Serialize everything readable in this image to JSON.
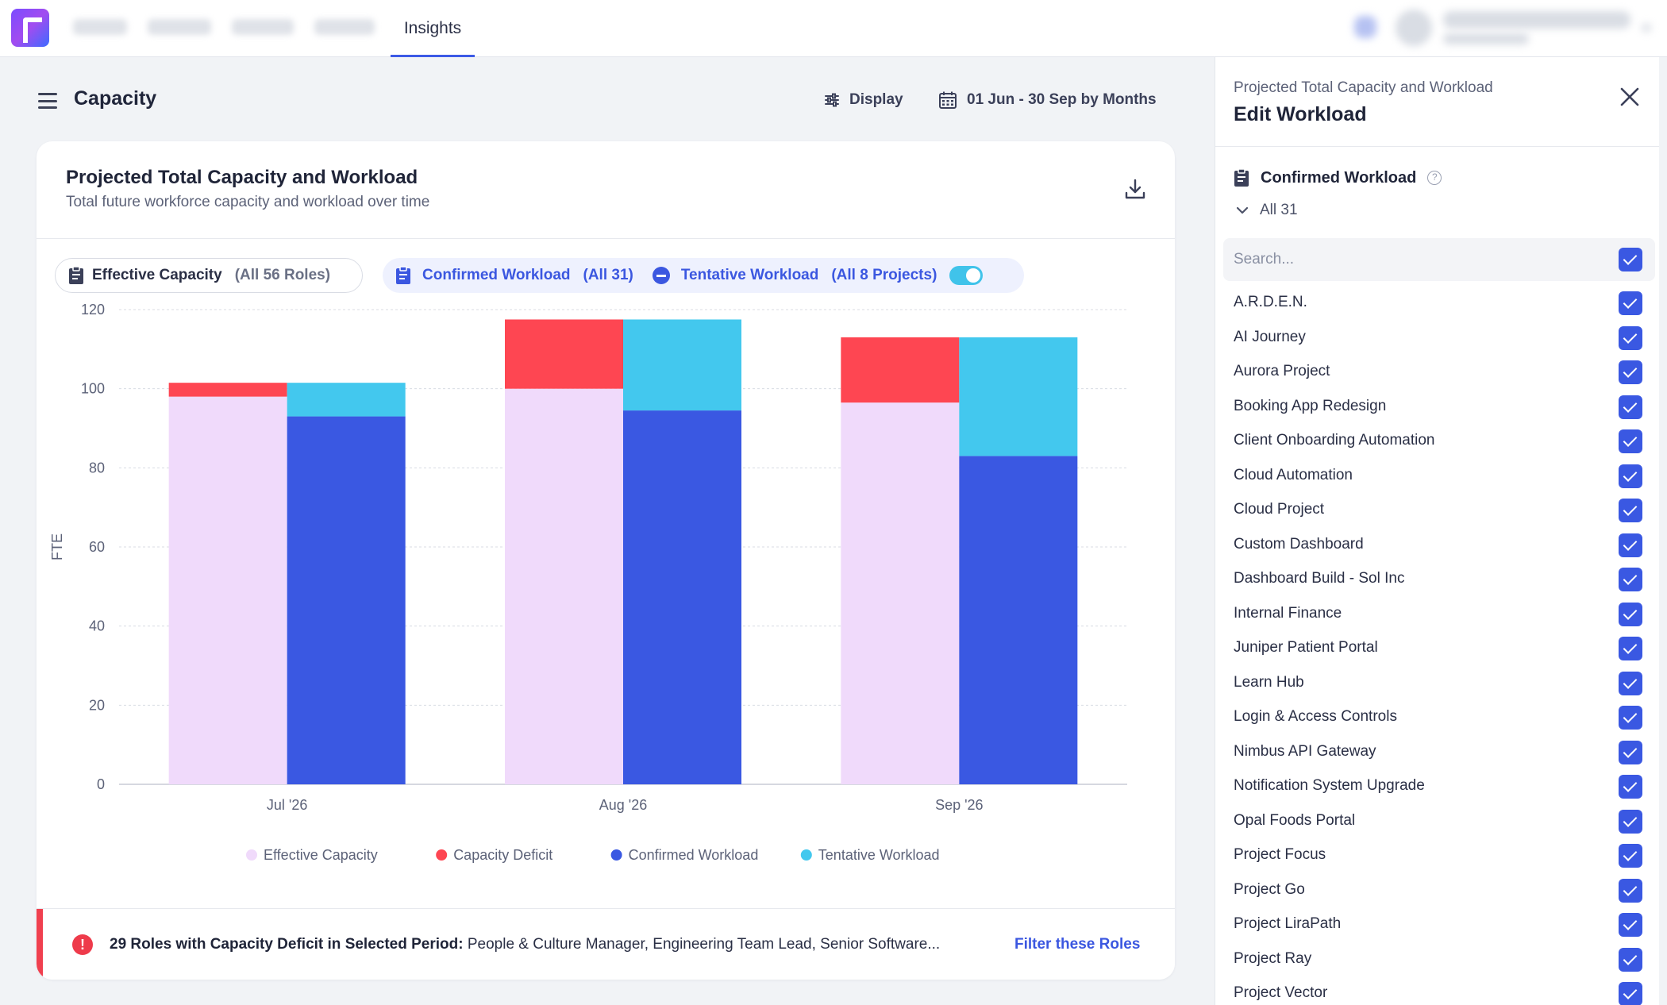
{
  "nav": {
    "active_tab": "Insights"
  },
  "header": {
    "page_title": "Capacity",
    "display_label": "Display",
    "date_range_label": "01 Jun - 30 Sep by Months"
  },
  "card": {
    "title": "Projected Total Capacity and Workload",
    "subtitle": "Total future workforce capacity and workload over time",
    "chips": {
      "effective_label": "Effective Capacity",
      "effective_count": "(All 56 Roles)",
      "confirmed_label": "Confirmed Workload",
      "confirmed_count": "(All 31)",
      "tentative_label": "Tentative Workload",
      "tentative_count": "(All 8 Projects)"
    },
    "deficit": {
      "headline": "29 Roles with Capacity Deficit in Selected Period:",
      "roles": " People & Culture Manager, Engineering Team Lead, Senior Software...",
      "link": "Filter these Roles"
    }
  },
  "chart_data": {
    "type": "bar",
    "categories": [
      "Jul '26",
      "Aug '26",
      "Sep '26"
    ],
    "ylabel": "FTE",
    "ylim": [
      0,
      120
    ],
    "yticks": [
      0,
      20,
      40,
      60,
      80,
      100,
      120
    ],
    "grid": true,
    "legend_position": "bottom",
    "series": [
      {
        "name": "Effective Capacity",
        "color": "#f0dafb",
        "values": [
          98,
          100,
          96.5
        ],
        "stack": "capacity"
      },
      {
        "name": "Capacity Deficit",
        "color": "#fe4652",
        "values": [
          3.5,
          17.5,
          16.5
        ],
        "stack": "capacity"
      },
      {
        "name": "Confirmed Workload",
        "color": "#3a58e2",
        "values": [
          93,
          94.5,
          83
        ],
        "stack": "workload"
      },
      {
        "name": "Tentative Workload",
        "color": "#43c8ee",
        "values": [
          8.5,
          23,
          30
        ],
        "stack": "workload"
      }
    ]
  },
  "panel": {
    "subtitle": "Projected Total Capacity and Workload",
    "title": "Edit Workload",
    "section_label": "Confirmed Workload",
    "all_label": "All 31",
    "search_placeholder": "Search...",
    "projects": [
      "A.R.D.E.N.",
      "AI Journey",
      "Aurora Project",
      "Booking App Redesign",
      "Client Onboarding Automation",
      "Cloud Automation",
      "Cloud Project",
      "Custom Dashboard",
      "Dashboard Build - Sol Inc",
      "Internal Finance",
      "Juniper Patient Portal",
      "Learn Hub",
      "Login & Access Controls",
      "Nimbus API Gateway",
      "Notification System Upgrade",
      "Opal Foods Portal",
      "Project Focus",
      "Project Go",
      "Project LiraPath",
      "Project Ray",
      "Project Vector"
    ]
  },
  "colors": {
    "accent": "#3b57e0",
    "deficit": "#f0404f"
  }
}
